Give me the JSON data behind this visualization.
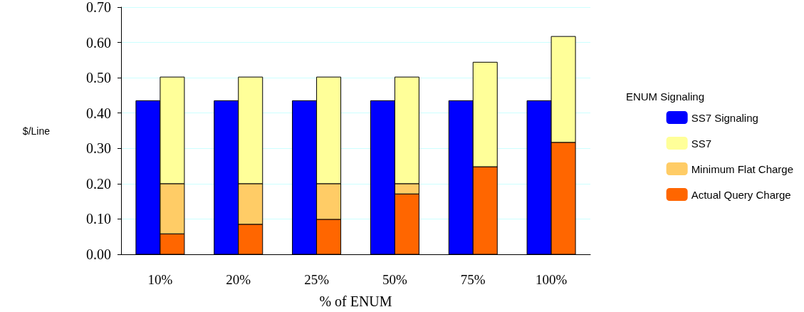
{
  "chart_data": {
    "type": "bar",
    "xlabel": "% of ENUM",
    "ylabel": "$/Line",
    "categories": [
      "10%",
      "20%",
      "25%",
      "50%",
      "75%",
      "100%"
    ],
    "series": [
      {
        "name": "SS7 Signaling",
        "color": "#0000ff",
        "values": [
          0.435,
          0.435,
          0.435,
          0.435,
          0.435,
          0.435
        ]
      },
      {
        "name": "Actual Query Charge",
        "color": "#ff6600",
        "base": [
          0,
          0,
          0,
          0,
          0,
          0
        ],
        "values": [
          0.058,
          0.085,
          0.099,
          0.171,
          0.248,
          0.317
        ]
      },
      {
        "name": "Minimum Flat Charge",
        "color": "#ffcc66",
        "base": [
          0.058,
          0.085,
          0.099,
          0.171,
          null,
          null
        ],
        "values": [
          0.142,
          0.115,
          0.101,
          0.029,
          null,
          null
        ]
      },
      {
        "name": "SS7",
        "color": "#ffff99",
        "base": [
          0.2,
          0.2,
          0.2,
          0.2,
          0.248,
          0.317
        ],
        "values": [
          0.302,
          0.302,
          0.302,
          0.302,
          0.296,
          0.3
        ]
      }
    ],
    "annotations": [
      "ENUM Signaling"
    ],
    "ylim": [
      0,
      0.7
    ],
    "yticks": [
      {
        "value": 0,
        "label": "0.00"
      },
      {
        "value": 0.1,
        "label": "0.10"
      },
      {
        "value": 0.2,
        "label": "0.20"
      },
      {
        "value": 0.3,
        "label": "0.30"
      },
      {
        "value": 0.4,
        "label": "0.40"
      },
      {
        "value": 0.5,
        "label": "0.50"
      },
      {
        "value": 0.6,
        "label": "0.60"
      },
      {
        "value": 0.7,
        "label": "0.70"
      }
    ],
    "grid": "y",
    "legend": "right"
  }
}
